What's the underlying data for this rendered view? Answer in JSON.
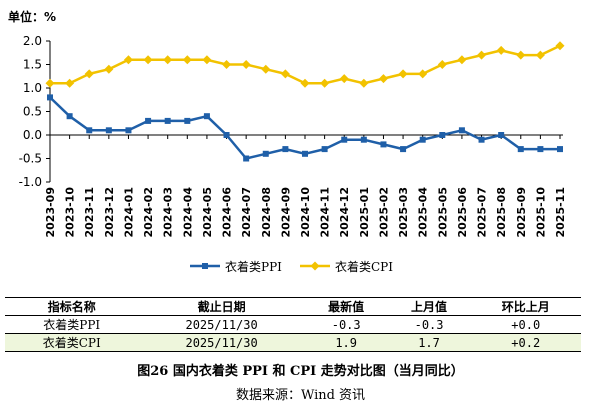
{
  "chart_data": {
    "type": "line",
    "unit_label": "单位：%",
    "ylim": [
      -1.0,
      2.0
    ],
    "yticks": [
      "2.0",
      "1.5",
      "1.0",
      "0.5",
      "0.0",
      "-0.5",
      "-1.0"
    ],
    "ytick_values": [
      2.0,
      1.5,
      1.0,
      0.5,
      0.0,
      -0.5,
      -1.0
    ],
    "categories": [
      "2023-09",
      "2023-10",
      "2023-11",
      "2023-12",
      "2024-01",
      "2024-02",
      "2024-03",
      "2024-04",
      "2024-05",
      "2024-06",
      "2024-07",
      "2024-08",
      "2024-09",
      "2024-10",
      "2024-11",
      "2024-12",
      "2025-01",
      "2025-02",
      "2025-03",
      "2025-04",
      "2025-05",
      "2025-06",
      "2025-07",
      "2025-08",
      "2025-09",
      "2025-10",
      "2025-11"
    ],
    "series": [
      {
        "name": "衣着类PPI",
        "color": "#1f5fa8",
        "marker": "square",
        "values": [
          0.8,
          0.4,
          0.1,
          0.1,
          0.1,
          0.3,
          0.3,
          0.3,
          0.4,
          0.0,
          -0.5,
          -0.4,
          -0.3,
          -0.4,
          -0.3,
          -0.1,
          -0.1,
          -0.2,
          -0.3,
          -0.1,
          0.0,
          0.1,
          -0.1,
          0.0,
          -0.3,
          -0.3,
          -0.3
        ]
      },
      {
        "name": "衣着类CPI",
        "color": "#f2c200",
        "marker": "diamond",
        "values": [
          1.1,
          1.1,
          1.3,
          1.4,
          1.6,
          1.6,
          1.6,
          1.6,
          1.6,
          1.5,
          1.5,
          1.4,
          1.3,
          1.1,
          1.1,
          1.2,
          1.1,
          1.2,
          1.3,
          1.3,
          1.5,
          1.6,
          1.7,
          1.8,
          1.7,
          1.7,
          1.9
        ]
      }
    ],
    "legend_position": "bottom-center",
    "grid": false
  },
  "table": {
    "headers": [
      "指标名称",
      "截止日期",
      "最新值",
      "上月值",
      "环比上月"
    ],
    "rows": [
      [
        "衣着类PPI",
        "2025/11/30",
        "-0.3",
        "-0.3",
        "+0.0"
      ],
      [
        "衣着类CPI",
        "2025/11/30",
        "1.9",
        "1.7",
        "+0.2"
      ]
    ]
  },
  "caption": "图26  国内衣着类 PPI 和 CPI 走势对比图（当月同比）",
  "source": "数据来源：Wind 资讯"
}
